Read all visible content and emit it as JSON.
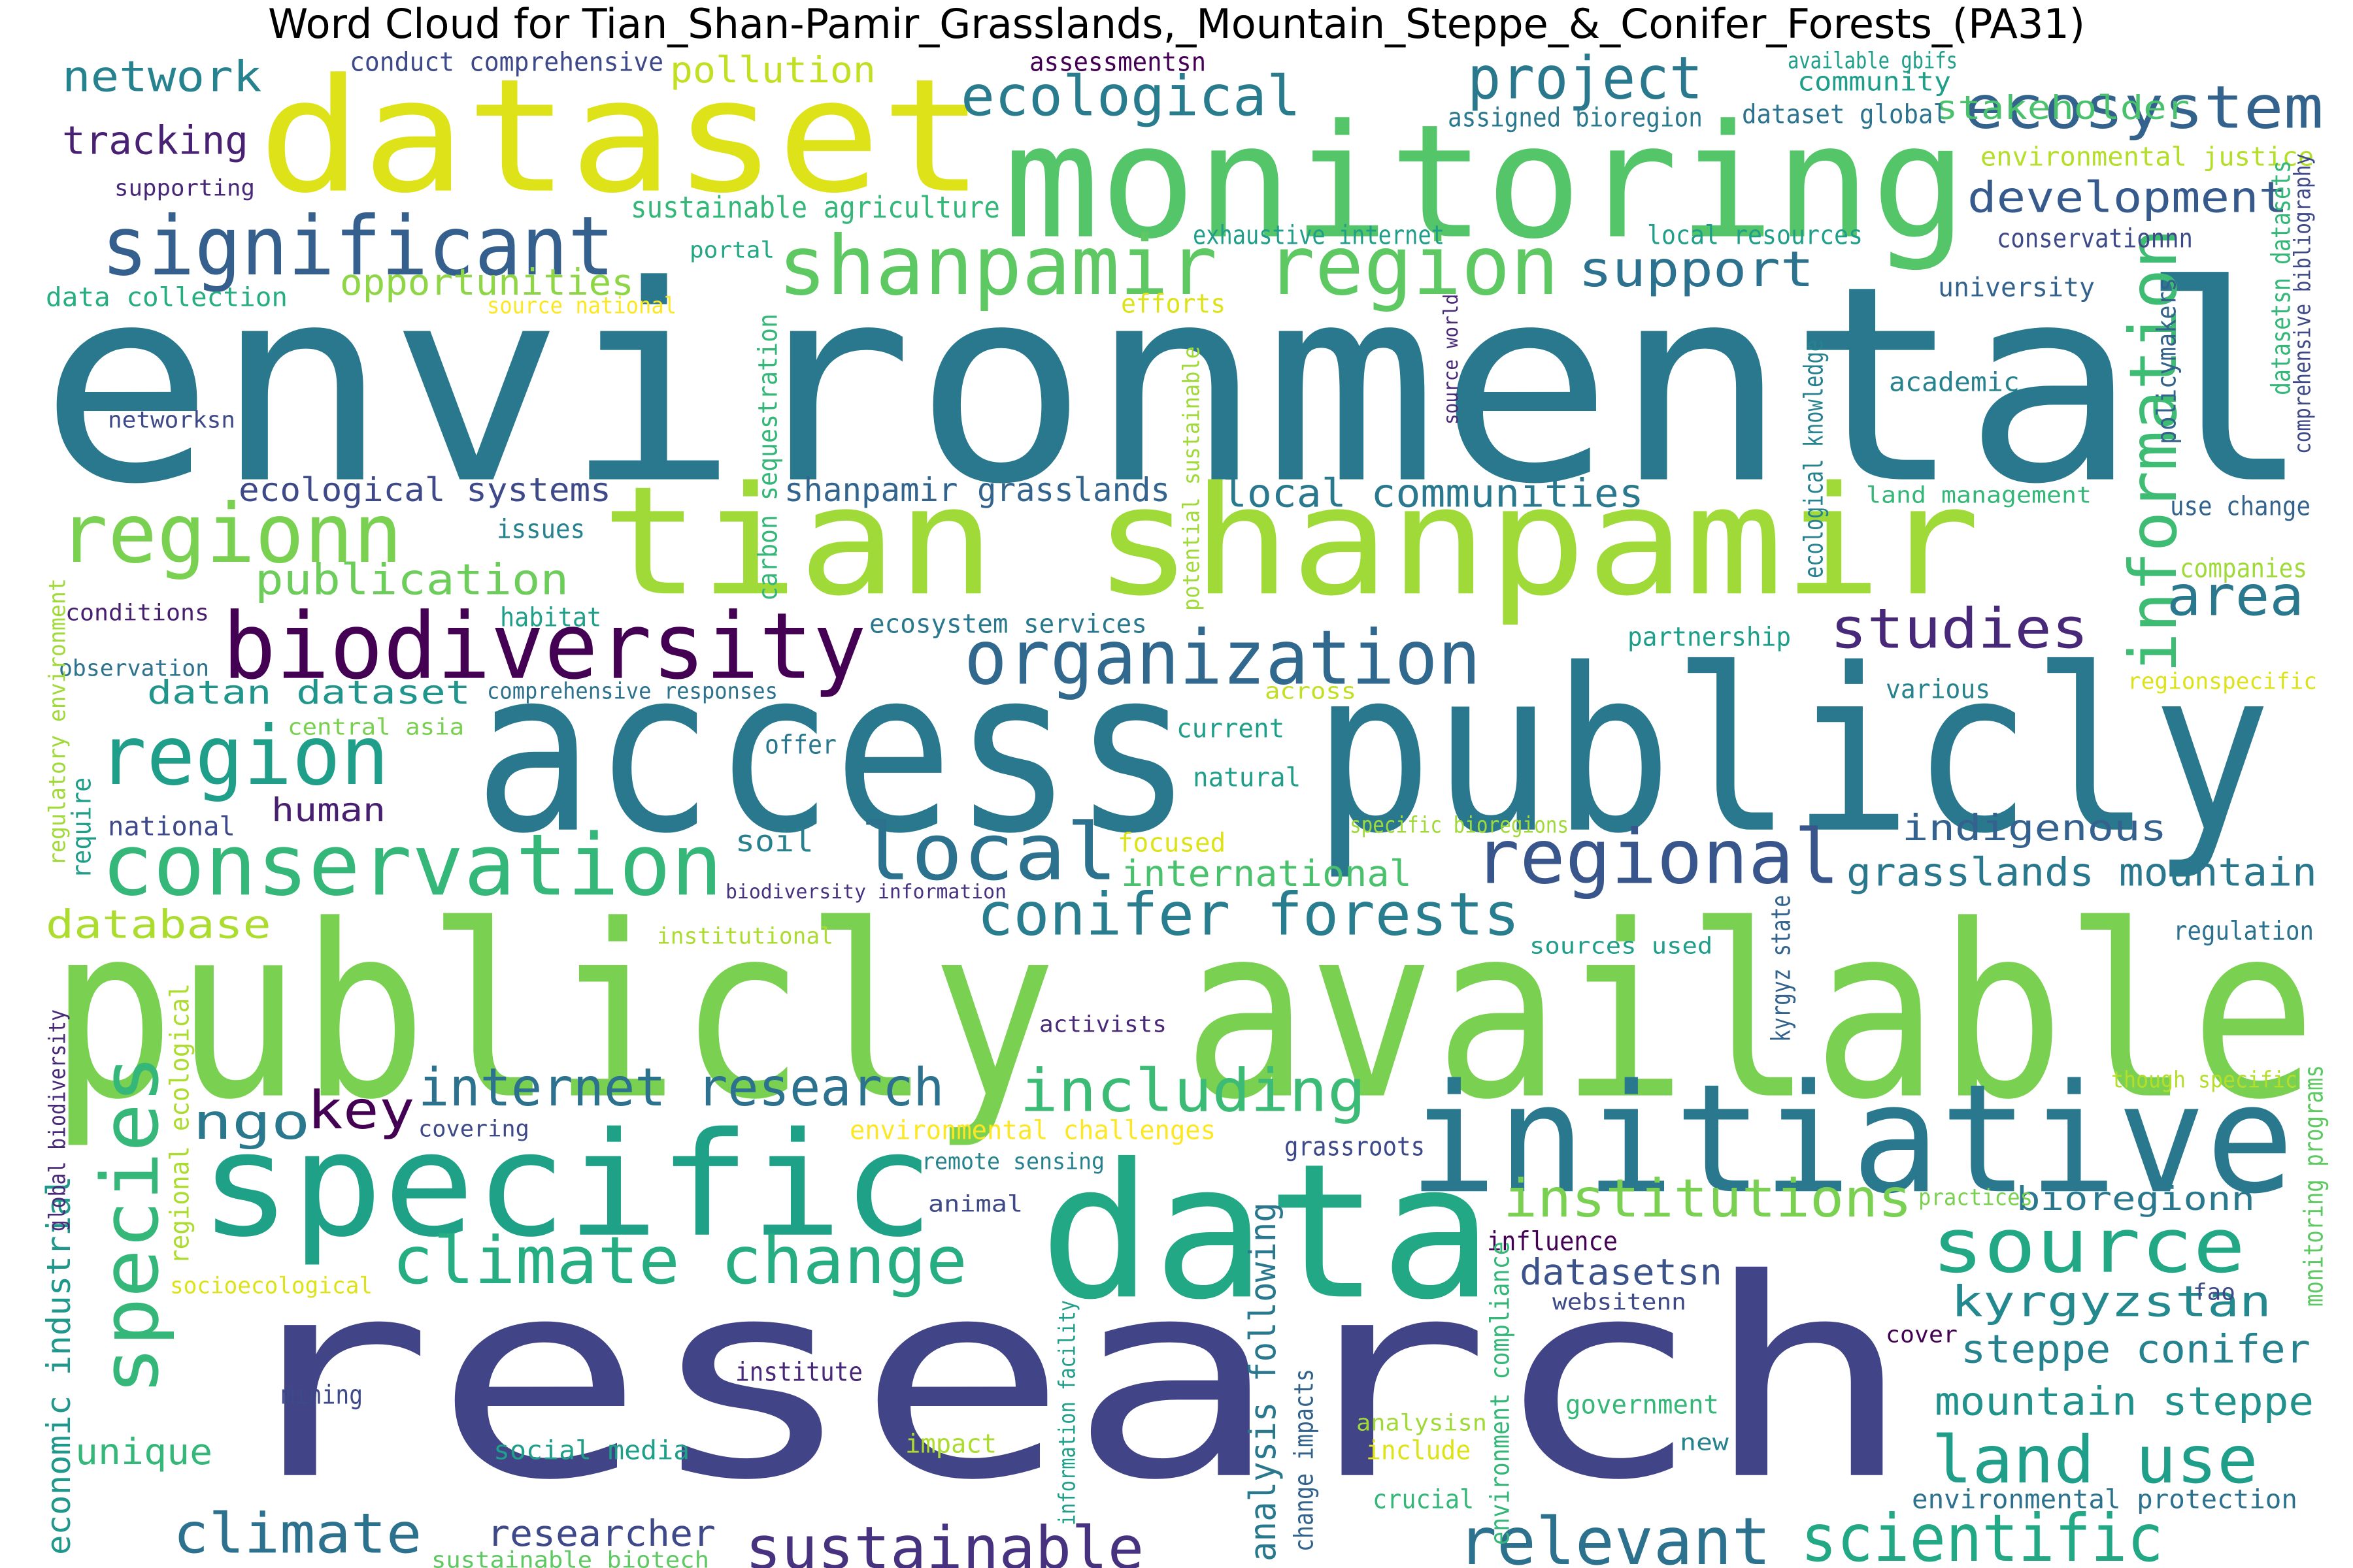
{
  "title": "Word Cloud for Tian_Shan-Pamir_Grasslands,_Mountain_Steppe_&_Conifer_Forests_(PA31)",
  "words": [
    {
      "text": "environmental",
      "color": "#2a788e"
    },
    {
      "text": "research",
      "color": "#414487"
    },
    {
      "text": "publicly available",
      "color": "#7ad151"
    },
    {
      "text": "access publicly",
      "color": "#2a788e"
    },
    {
      "text": "monitoring",
      "color": "#54c568"
    },
    {
      "text": "dataset",
      "color": "#dde318"
    },
    {
      "text": "tian shanpamir",
      "color": "#a0da39"
    },
    {
      "text": "data",
      "color": "#22a884"
    },
    {
      "text": "initiative",
      "color": "#2a788e"
    },
    {
      "text": "specific",
      "color": "#1fa187"
    },
    {
      "text": "significant",
      "color": "#355f8d"
    },
    {
      "text": "biodiversity",
      "color": "#440154"
    },
    {
      "text": "conservation",
      "color": "#35b779"
    },
    {
      "text": "shanpamir region",
      "color": "#5ec962"
    },
    {
      "text": "regionn",
      "color": "#7ad151"
    },
    {
      "text": "region",
      "color": "#1f9e89"
    },
    {
      "text": "organization",
      "color": "#31688e"
    },
    {
      "text": "local",
      "color": "#2c728e"
    },
    {
      "text": "regional",
      "color": "#39568c"
    },
    {
      "text": "source",
      "color": "#22a884"
    },
    {
      "text": "species",
      "color": "#35b779"
    },
    {
      "text": "climate change",
      "color": "#26ad81"
    },
    {
      "text": "land use",
      "color": "#1f9e89"
    },
    {
      "text": "relevant",
      "color": "#2c728e"
    },
    {
      "text": "scientific",
      "color": "#22a884"
    },
    {
      "text": "sustainable",
      "color": "#46327e"
    },
    {
      "text": "climate",
      "color": "#2c728e"
    },
    {
      "text": "project",
      "color": "#2a788e"
    },
    {
      "text": "ecosystem",
      "color": "#33638d"
    },
    {
      "text": "ecological",
      "color": "#287c8e"
    },
    {
      "text": "information",
      "color": "#3fbc73"
    },
    {
      "text": "studies",
      "color": "#482878"
    },
    {
      "text": "area",
      "color": "#2a788e"
    },
    {
      "text": "conifer forests",
      "color": "#287d8e"
    },
    {
      "text": "including",
      "color": "#3bbb75"
    },
    {
      "text": "institutions",
      "color": "#7ad151"
    },
    {
      "text": "internet research",
      "color": "#2c728e"
    },
    {
      "text": "key",
      "color": "#440154"
    },
    {
      "text": "ngo",
      "color": "#2a788e"
    },
    {
      "text": "support",
      "color": "#2c728e"
    },
    {
      "text": "development",
      "color": "#375a8c"
    },
    {
      "text": "network",
      "color": "#26828e"
    },
    {
      "text": "tracking",
      "color": "#482173"
    },
    {
      "text": "publication",
      "color": "#6ccd5a"
    },
    {
      "text": "opportunities",
      "color": "#8ed645"
    },
    {
      "text": "pollution",
      "color": "#c2df23"
    },
    {
      "text": "stakeholder",
      "color": "#4ac16d"
    },
    {
      "text": "local communities",
      "color": "#2a788e"
    },
    {
      "text": "ecological systems",
      "color": "#3e4989"
    },
    {
      "text": "shanpamir grasslands",
      "color": "#32648e"
    },
    {
      "text": "datan dataset",
      "color": "#1f958b"
    },
    {
      "text": "database",
      "color": "#addc30"
    },
    {
      "text": "human",
      "color": "#481f70"
    },
    {
      "text": "soil",
      "color": "#27808e"
    },
    {
      "text": "international",
      "color": "#4ac16d"
    },
    {
      "text": "grasslands mountain",
      "color": "#2a788e"
    },
    {
      "text": "indigenous",
      "color": "#34618d"
    },
    {
      "text": "kyrgyzstan",
      "color": "#23898e"
    },
    {
      "text": "steppe conifer",
      "color": "#26828e"
    },
    {
      "text": "mountain steppe",
      "color": "#21918c"
    },
    {
      "text": "datasetsn",
      "color": "#3b528b"
    },
    {
      "text": "bioregionn",
      "color": "#2a788e"
    },
    {
      "text": "researcher",
      "color": "#3e4989"
    },
    {
      "text": "unique",
      "color": "#35b779"
    },
    {
      "text": "analysis following",
      "color": "#2a788e"
    },
    {
      "text": "economic industrial",
      "color": "#1f988b"
    },
    {
      "text": "sustainable agriculture",
      "color": "#35b779"
    },
    {
      "text": "data collection",
      "color": "#26ad81"
    },
    {
      "text": "conduct comprehensive",
      "color": "#3e4989"
    },
    {
      "text": "assessmentsn",
      "color": "#440154"
    },
    {
      "text": "available gbifs",
      "color": "#1f9e89"
    },
    {
      "text": "community",
      "color": "#1f9e89"
    },
    {
      "text": "assigned bioregion",
      "color": "#2a788e"
    },
    {
      "text": "dataset global",
      "color": "#2c728e"
    },
    {
      "text": "environmental justice",
      "color": "#b5de2b"
    },
    {
      "text": "exhaustive internet",
      "color": "#1f9e89"
    },
    {
      "text": "local resources",
      "color": "#1f9e89"
    },
    {
      "text": "conservationnn",
      "color": "#3e4989"
    },
    {
      "text": "university",
      "color": "#33638d"
    },
    {
      "text": "academic",
      "color": "#26828e"
    },
    {
      "text": "supporting",
      "color": "#482878"
    },
    {
      "text": "portal",
      "color": "#22a884"
    },
    {
      "text": "source national",
      "color": "#fde725"
    },
    {
      "text": "efforts",
      "color": "#dde318"
    },
    {
      "text": "networksn",
      "color": "#3e4989"
    },
    {
      "text": "issues",
      "color": "#26828e"
    },
    {
      "text": "conditions",
      "color": "#481f70"
    },
    {
      "text": "habitat",
      "color": "#1f9e89"
    },
    {
      "text": "observation",
      "color": "#2c728e"
    },
    {
      "text": "ecosystem services",
      "color": "#2a788e"
    },
    {
      "text": "comprehensive responses",
      "color": "#2c728e"
    },
    {
      "text": "central asia",
      "color": "#7ad151"
    },
    {
      "text": "offer",
      "color": "#2a788e"
    },
    {
      "text": "across",
      "color": "#c2df23"
    },
    {
      "text": "current",
      "color": "#1f9e89"
    },
    {
      "text": "natural",
      "color": "#1f9e89"
    },
    {
      "text": "national",
      "color": "#3e4989"
    },
    {
      "text": "focused",
      "color": "#dde318"
    },
    {
      "text": "biodiversity information",
      "color": "#46327e"
    },
    {
      "text": "institutional",
      "color": "#addc30"
    },
    {
      "text": "sources used",
      "color": "#1f9e89"
    },
    {
      "text": "activists",
      "color": "#482878"
    },
    {
      "text": "covering",
      "color": "#3e4989"
    },
    {
      "text": "environmental challenges",
      "color": "#fde725"
    },
    {
      "text": "remote sensing",
      "color": "#26828e"
    },
    {
      "text": "animal",
      "color": "#3e4989"
    },
    {
      "text": "grassroots",
      "color": "#3e4989"
    },
    {
      "text": "influence",
      "color": "#440154"
    },
    {
      "text": "websitenn",
      "color": "#3e4989"
    },
    {
      "text": "institute",
      "color": "#482878"
    },
    {
      "text": "mining",
      "color": "#3e4989"
    },
    {
      "text": "social media",
      "color": "#1f9e89"
    },
    {
      "text": "impact",
      "color": "#addc30"
    },
    {
      "text": "government",
      "color": "#35b779"
    },
    {
      "text": "analysisn",
      "color": "#a0da39"
    },
    {
      "text": "include",
      "color": "#dde318"
    },
    {
      "text": "crucial",
      "color": "#35b779"
    },
    {
      "text": "new",
      "color": "#26828e"
    },
    {
      "text": "environmental protection",
      "color": "#2c728e"
    },
    {
      "text": "sustainable biotech",
      "color": "#5ec962"
    },
    {
      "text": "socioecological",
      "color": "#dde318"
    },
    {
      "text": "land management",
      "color": "#35b779"
    },
    {
      "text": "use change",
      "color": "#33638d"
    },
    {
      "text": "partnership",
      "color": "#1f9e89"
    },
    {
      "text": "companies",
      "color": "#a0da39"
    },
    {
      "text": "various",
      "color": "#26828e"
    },
    {
      "text": "regionspecific",
      "color": "#dde318"
    },
    {
      "text": "specific bioregions",
      "color": "#a0da39"
    },
    {
      "text": "regulation",
      "color": "#2c728e"
    },
    {
      "text": "though specific",
      "color": "#b5de2b"
    },
    {
      "text": "practices",
      "color": "#7ad151"
    },
    {
      "text": "fao",
      "color": "#3e4989"
    },
    {
      "text": "cover",
      "color": "#440154"
    },
    {
      "text": "carbon sequestration",
      "color": "#35b779"
    },
    {
      "text": "potential sustainable",
      "color": "#a0da39"
    },
    {
      "text": "source world",
      "color": "#482878"
    },
    {
      "text": "ecological knowledge",
      "color": "#26828e"
    },
    {
      "text": "policymakers",
      "color": "#33638d"
    },
    {
      "text": "datasetsn datasets",
      "color": "#35b779"
    },
    {
      "text": "comprehensive bibliography",
      "color": "#3e4989"
    },
    {
      "text": "regulatory environment",
      "color": "#a0da39"
    },
    {
      "text": "require",
      "color": "#1f9e89"
    },
    {
      "text": "regional ecological",
      "color": "#addc30"
    },
    {
      "text": "global biodiversity",
      "color": "#482878"
    },
    {
      "text": "information facility",
      "color": "#1f9e89"
    },
    {
      "text": "change impacts",
      "color": "#33638d"
    },
    {
      "text": "environment compliance",
      "color": "#35b779"
    },
    {
      "text": "kyrgyz state",
      "color": "#33638d"
    },
    {
      "text": "monitoring programs",
      "color": "#5ec962"
    }
  ]
}
